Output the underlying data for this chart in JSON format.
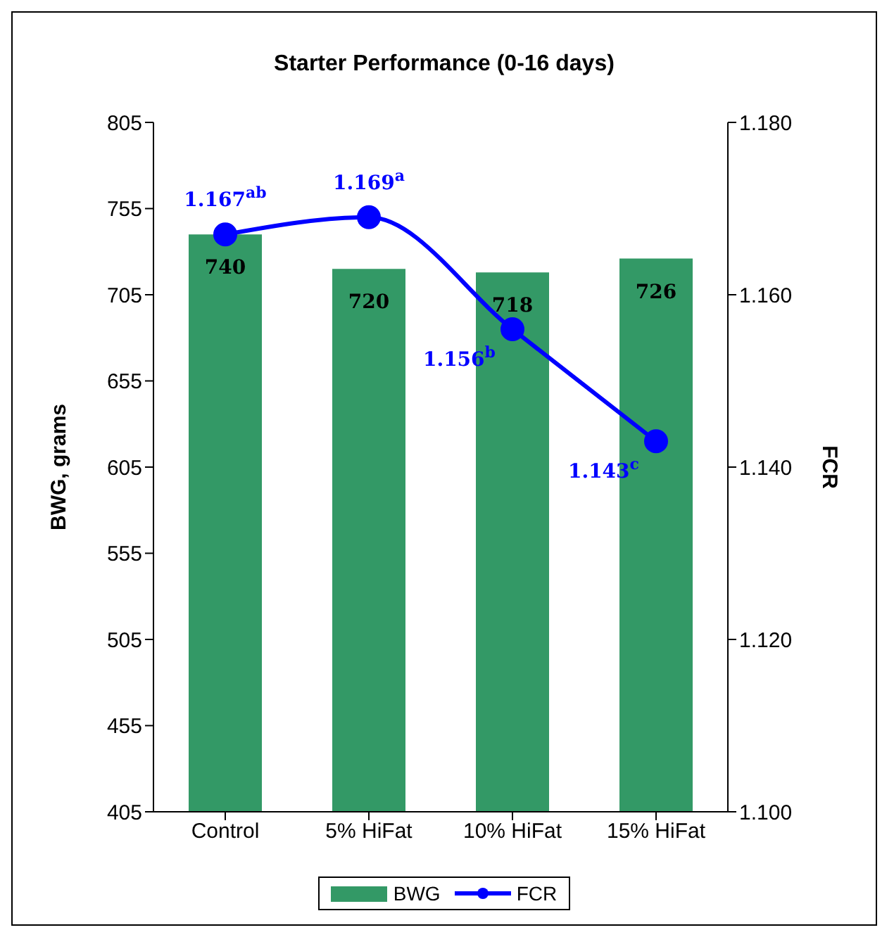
{
  "chart_data": {
    "type": "bar",
    "title": "Starter Performance (0-16 days)",
    "ylabel": "BWG, grams",
    "y2label": "FCR",
    "categories": [
      "Control",
      "5% HiFat",
      "10% HiFat",
      "15% HiFat"
    ],
    "series": [
      {
        "name": "BWG",
        "color": "#339966",
        "values": [
          740,
          720,
          718,
          726
        ],
        "value_labels": [
          "740",
          "720",
          "718",
          "726"
        ]
      },
      {
        "name": "FCR",
        "type": "line",
        "axis": "y2",
        "color": "#0000ff",
        "values": [
          1.167,
          1.169,
          1.156,
          1.143
        ],
        "value_labels": [
          "1.167$^{ab}$",
          "1.169$^{a}$",
          "1.156$^{b}$",
          "1.143$^{c}$"
        ]
      }
    ],
    "ylim": [
      405,
      805
    ],
    "yticks": [
      405,
      455,
      505,
      555,
      605,
      655,
      705,
      755,
      805
    ],
    "y2lim": [
      1.1,
      1.18
    ],
    "y2ticks": [
      {
        "value": 1.1,
        "label": "1.100"
      },
      {
        "value": 1.12,
        "label": "1.120"
      },
      {
        "value": 1.14,
        "label": "1.140"
      },
      {
        "value": 1.16,
        "label": "1.160"
      },
      {
        "value": 1.18,
        "label": "1.180"
      }
    ],
    "legend": "bottom",
    "marker": "circle",
    "line_style": "solid",
    "grid": false
  }
}
